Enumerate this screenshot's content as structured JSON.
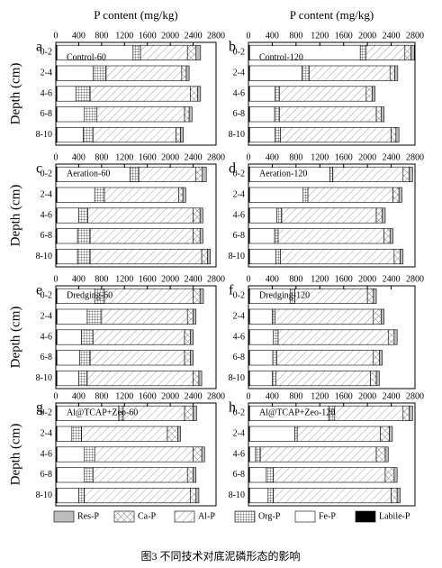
{
  "caption": "图3 不同技术对底泥磷形态的影响",
  "chart_data": [
    {
      "type": "bar",
      "orientation": "horizontal",
      "stacked": true,
      "label": "a",
      "title": "Control-60",
      "xlabel": "P content (mg/kg)",
      "ylabel": "Depth (cm)",
      "xlim": [
        0,
        2800
      ],
      "xticks": [
        0,
        400,
        800,
        1200,
        1600,
        2000,
        2400,
        2800
      ],
      "categories": [
        "0-2",
        "2-4",
        "4-6",
        "6-8",
        "8-10"
      ],
      "series": [
        {
          "name": "Labile-P",
          "color": "#000000",
          "pattern": "solid",
          "values": [
            20,
            20,
            20,
            20,
            20
          ]
        },
        {
          "name": "Fe-P",
          "color": "#ffffff",
          "pattern": "solid",
          "values": [
            1330,
            630,
            330,
            480,
            460
          ]
        },
        {
          "name": "Org-P",
          "color": "#ffffff",
          "pattern": "grid",
          "values": [
            130,
            230,
            250,
            220,
            170
          ]
        },
        {
          "name": "Al-P",
          "color": "#ffffff",
          "pattern": "diagonal",
          "values": [
            820,
            1320,
            1750,
            1530,
            1450
          ]
        },
        {
          "name": "Ca-P",
          "color": "#ffffff",
          "pattern": "crosshatch",
          "values": [
            150,
            80,
            130,
            80,
            80
          ]
        },
        {
          "name": "Res-P",
          "color": "#bdbdbd",
          "pattern": "solid",
          "values": [
            80,
            50,
            50,
            50,
            50
          ]
        }
      ]
    },
    {
      "type": "bar",
      "orientation": "horizontal",
      "stacked": true,
      "label": "b",
      "title": "Control-120",
      "xlabel": "P content (mg/kg)",
      "xlim": [
        0,
        2800
      ],
      "xticks": [
        0,
        400,
        800,
        1200,
        1600,
        2000,
        2400,
        2800
      ],
      "categories": [
        "0-2",
        "2-4",
        "4-6",
        "6-8",
        "8-10"
      ],
      "series": [
        {
          "name": "Labile-P",
          "color": "#000000",
          "pattern": "solid",
          "values": [
            20,
            20,
            20,
            20,
            20
          ]
        },
        {
          "name": "Fe-P",
          "color": "#ffffff",
          "pattern": "solid",
          "values": [
            1860,
            880,
            430,
            420,
            430
          ]
        },
        {
          "name": "Org-P",
          "color": "#ffffff",
          "pattern": "grid",
          "values": [
            100,
            120,
            70,
            80,
            90
          ]
        },
        {
          "name": "Al-P",
          "color": "#ffffff",
          "pattern": "diagonal",
          "values": [
            650,
            1360,
            1460,
            1630,
            1860
          ]
        },
        {
          "name": "Ca-P",
          "color": "#ffffff",
          "pattern": "crosshatch",
          "values": [
            100,
            80,
            100,
            80,
            80
          ]
        },
        {
          "name": "Res-P",
          "color": "#bdbdbd",
          "pattern": "solid",
          "values": [
            60,
            50,
            50,
            50,
            50
          ]
        }
      ]
    },
    {
      "type": "bar",
      "orientation": "horizontal",
      "stacked": true,
      "label": "c",
      "title": "Aeration-60",
      "ylabel": "Depth (cm)",
      "xlim": [
        0,
        2800
      ],
      "xticks": [
        0,
        400,
        800,
        1200,
        1600,
        2000,
        2400,
        2800
      ],
      "categories": [
        "0-2",
        "2-4",
        "4-6",
        "6-8",
        "8-10"
      ],
      "series": [
        {
          "name": "Labile-P",
          "color": "#000000",
          "pattern": "solid",
          "values": [
            20,
            20,
            20,
            20,
            20
          ]
        },
        {
          "name": "Fe-P",
          "color": "#ffffff",
          "pattern": "solid",
          "values": [
            1280,
            660,
            380,
            360,
            360
          ]
        },
        {
          "name": "Org-P",
          "color": "#ffffff",
          "pattern": "grid",
          "values": [
            150,
            170,
            160,
            220,
            220
          ]
        },
        {
          "name": "Al-P",
          "color": "#ffffff",
          "pattern": "diagonal",
          "values": [
            1000,
            1300,
            1840,
            1800,
            1950
          ]
        },
        {
          "name": "Ca-P",
          "color": "#ffffff",
          "pattern": "crosshatch",
          "values": [
            110,
            70,
            120,
            120,
            100
          ]
        },
        {
          "name": "Res-P",
          "color": "#bdbdbd",
          "pattern": "solid",
          "values": [
            70,
            50,
            50,
            50,
            50
          ]
        }
      ]
    },
    {
      "type": "bar",
      "orientation": "horizontal",
      "stacked": true,
      "label": "d",
      "title": "Aeration-120",
      "xlim": [
        0,
        2800
      ],
      "xticks": [
        0,
        400,
        800,
        1200,
        1600,
        2000,
        2400,
        2800
      ],
      "categories": [
        "0-2",
        "2-4",
        "4-6",
        "6-8",
        "8-10"
      ],
      "series": [
        {
          "name": "Labile-P",
          "color": "#000000",
          "pattern": "solid",
          "values": [
            20,
            20,
            20,
            20,
            20
          ]
        },
        {
          "name": "Fe-P",
          "color": "#ffffff",
          "pattern": "solid",
          "values": [
            1350,
            900,
            460,
            420,
            440
          ]
        },
        {
          "name": "Org-P",
          "color": "#ffffff",
          "pattern": "grid",
          "values": [
            50,
            80,
            80,
            60,
            80
          ]
        },
        {
          "name": "Al-P",
          "color": "#ffffff",
          "pattern": "diagonal",
          "values": [
            1180,
            1430,
            1590,
            1780,
            1910
          ]
        },
        {
          "name": "Ca-P",
          "color": "#ffffff",
          "pattern": "crosshatch",
          "values": [
            100,
            100,
            100,
            100,
            100
          ]
        },
        {
          "name": "Res-P",
          "color": "#bdbdbd",
          "pattern": "solid",
          "values": [
            60,
            50,
            50,
            50,
            50
          ]
        }
      ]
    },
    {
      "type": "bar",
      "orientation": "horizontal",
      "stacked": true,
      "label": "e",
      "title": "Dredging-60",
      "ylabel": "Depth (cm)",
      "xlim": [
        0,
        2800
      ],
      "xticks": [
        0,
        400,
        800,
        1200,
        1600,
        2000,
        2400,
        2800
      ],
      "categories": [
        "0-2",
        "2-4",
        "4-6",
        "6-8",
        "8-10"
      ],
      "series": [
        {
          "name": "Labile-P",
          "color": "#000000",
          "pattern": "solid",
          "values": [
            20,
            20,
            20,
            20,
            20
          ]
        },
        {
          "name": "Fe-P",
          "color": "#ffffff",
          "pattern": "solid",
          "values": [
            660,
            530,
            430,
            400,
            380
          ]
        },
        {
          "name": "Org-P",
          "color": "#ffffff",
          "pattern": "grid",
          "values": [
            170,
            250,
            200,
            180,
            150
          ]
        },
        {
          "name": "Al-P",
          "color": "#ffffff",
          "pattern": "diagonal",
          "values": [
            1550,
            1500,
            1600,
            1650,
            1850
          ]
        },
        {
          "name": "Ca-P",
          "color": "#ffffff",
          "pattern": "crosshatch",
          "values": [
            120,
            100,
            100,
            100,
            100
          ]
        },
        {
          "name": "Res-P",
          "color": "#bdbdbd",
          "pattern": "solid",
          "values": [
            60,
            50,
            50,
            50,
            50
          ]
        }
      ]
    },
    {
      "type": "bar",
      "orientation": "horizontal",
      "stacked": true,
      "label": "f",
      "title": "Dredging-120",
      "xlim": [
        0,
        2800
      ],
      "xticks": [
        0,
        400,
        800,
        1200,
        1600,
        2000,
        2400,
        2800
      ],
      "categories": [
        "0-2",
        "2-4",
        "4-6",
        "6-8",
        "8-10"
      ],
      "series": [
        {
          "name": "Labile-P",
          "color": "#000000",
          "pattern": "solid",
          "values": [
            20,
            20,
            20,
            20,
            20
          ]
        },
        {
          "name": "Fe-P",
          "color": "#ffffff",
          "pattern": "solid",
          "values": [
            680,
            380,
            400,
            390,
            380
          ]
        },
        {
          "name": "Org-P",
          "color": "#ffffff",
          "pattern": "grid",
          "values": [
            80,
            50,
            80,
            70,
            60
          ]
        },
        {
          "name": "Al-P",
          "color": "#ffffff",
          "pattern": "diagonal",
          "values": [
            1220,
            1650,
            1850,
            1620,
            1590
          ]
        },
        {
          "name": "Ca-P",
          "color": "#ffffff",
          "pattern": "crosshatch",
          "values": [
            100,
            130,
            100,
            100,
            100
          ]
        },
        {
          "name": "Res-P",
          "color": "#bdbdbd",
          "pattern": "solid",
          "values": [
            50,
            50,
            50,
            50,
            50
          ]
        }
      ]
    },
    {
      "type": "bar",
      "orientation": "horizontal",
      "stacked": true,
      "label": "g",
      "title": "Al@TCAP+Zeo-60",
      "ylabel": "Depth (cm)",
      "xlim": [
        0,
        2800
      ],
      "xticks": [
        0,
        400,
        800,
        1200,
        1600,
        2000,
        2400,
        2800
      ],
      "categories": [
        "0-2",
        "2-4",
        "4-6",
        "6-8",
        "8-10"
      ],
      "series": [
        {
          "name": "Labile-P",
          "color": "#000000",
          "pattern": "solid",
          "values": [
            20,
            20,
            20,
            20,
            20
          ]
        },
        {
          "name": "Fe-P",
          "color": "#ffffff",
          "pattern": "solid",
          "values": [
            1080,
            260,
            480,
            480,
            380
          ]
        },
        {
          "name": "Org-P",
          "color": "#ffffff",
          "pattern": "grid",
          "values": [
            80,
            170,
            180,
            150,
            100
          ]
        },
        {
          "name": "Al-P",
          "color": "#ffffff",
          "pattern": "diagonal",
          "values": [
            1070,
            1500,
            1720,
            1650,
            1850
          ]
        },
        {
          "name": "Ca-P",
          "color": "#ffffff",
          "pattern": "crosshatch",
          "values": [
            150,
            180,
            150,
            100,
            100
          ]
        },
        {
          "name": "Res-P",
          "color": "#bdbdbd",
          "pattern": "solid",
          "values": [
            60,
            50,
            50,
            50,
            50
          ]
        }
      ]
    },
    {
      "type": "bar",
      "orientation": "horizontal",
      "stacked": true,
      "label": "h",
      "title": "Al@TCAP+Zeo-120",
      "xlim": [
        0,
        2800
      ],
      "xticks": [
        0,
        400,
        800,
        1200,
        1600,
        2000,
        2400,
        2800
      ],
      "categories": [
        "0-2",
        "2-4",
        "4-6",
        "6-8",
        "8-10"
      ],
      "series": [
        {
          "name": "Labile-P",
          "color": "#000000",
          "pattern": "solid",
          "values": [
            20,
            20,
            20,
            20,
            20
          ]
        },
        {
          "name": "Fe-P",
          "color": "#ffffff",
          "pattern": "solid",
          "values": [
            1330,
            760,
            100,
            280,
            310
          ]
        },
        {
          "name": "Org-P",
          "color": "#ffffff",
          "pattern": "grid",
          "values": [
            100,
            40,
            80,
            120,
            90
          ]
        },
        {
          "name": "Al-P",
          "color": "#ffffff",
          "pattern": "diagonal",
          "values": [
            1150,
            1400,
            1950,
            1880,
            1980
          ]
        },
        {
          "name": "Ca-P",
          "color": "#ffffff",
          "pattern": "crosshatch",
          "values": [
            100,
            150,
            150,
            150,
            100
          ]
        },
        {
          "name": "Res-P",
          "color": "#bdbdbd",
          "pattern": "solid",
          "values": [
            60,
            50,
            50,
            50,
            50
          ]
        }
      ]
    }
  ]
}
